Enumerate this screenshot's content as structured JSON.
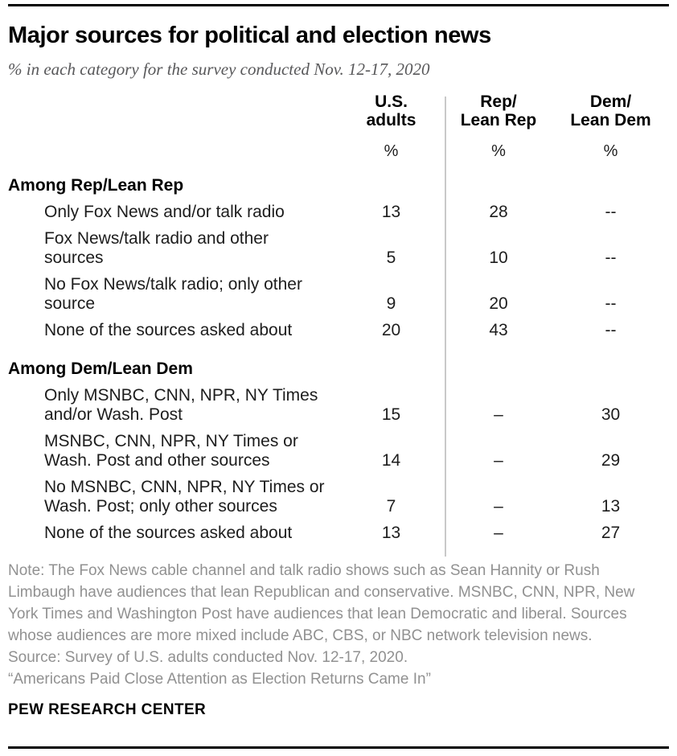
{
  "header": {
    "title": "Major sources for political and election news",
    "subtitle": "% in each category for the survey conducted Nov. 12-17, 2020"
  },
  "table": {
    "columns": [
      {
        "label": "U.S.\nadults",
        "unit": "%"
      },
      {
        "label": "Rep/\nLean Rep",
        "unit": "%"
      },
      {
        "label": "Dem/\nLean Dem",
        "unit": "%"
      }
    ],
    "sections": [
      {
        "heading": "Among Rep/Lean Rep",
        "rows": [
          {
            "label": "Only Fox News and/or talk radio",
            "values": [
              "13",
              "28",
              "--"
            ]
          },
          {
            "label": "Fox News/talk radio and other\nsources",
            "values": [
              "5",
              "10",
              "--"
            ]
          },
          {
            "label": "No Fox News/talk radio; only other\nsource",
            "values": [
              "9",
              "20",
              "--"
            ]
          },
          {
            "label": "None of the sources asked about",
            "values": [
              "20",
              "43",
              "--"
            ]
          }
        ]
      },
      {
        "heading": "Among Dem/Lean Dem",
        "rows": [
          {
            "label": "Only MSNBC, CNN, NPR, NY Times\nand/or Wash. Post",
            "values": [
              "15",
              "–",
              "30"
            ]
          },
          {
            "label": "MSNBC, CNN, NPR, NY Times or\nWash. Post and other sources",
            "values": [
              "14",
              "–",
              "29"
            ]
          },
          {
            "label": "No MSNBC, CNN, NPR, NY Times or\nWash. Post; only other sources",
            "values": [
              "7",
              "–",
              "13"
            ]
          },
          {
            "label": "None of the sources asked about",
            "values": [
              "13",
              "–",
              "27"
            ]
          }
        ]
      }
    ]
  },
  "footer": {
    "note": "Note: The Fox News cable channel and talk radio shows such as Sean Hannity or Rush Limbaugh have audiences that lean Republican and conservative. MSNBC, CNN, NPR, New York Times and Washington Post have audiences that lean Democratic and liberal. Sources whose audiences are more mixed include ABC, CBS, or NBC network television news.",
    "source": "Source: Survey of U.S. adults conducted Nov. 12-17, 2020.",
    "report": "“Americans Paid Close Attention as Election Returns Came In”",
    "brand": "PEW RESEARCH CENTER"
  },
  "chart_data": {
    "type": "table",
    "title": "Major sources for political and election news",
    "subtitle": "% in each category for the survey conducted Nov. 12-17, 2020",
    "columns": [
      "U.S. adults",
      "Rep/Lean Rep",
      "Dem/Lean Dem"
    ],
    "units": "%",
    "sections": [
      {
        "heading": "Among Rep/Lean Rep",
        "rows": [
          {
            "category": "Only Fox News and/or talk radio",
            "us_adults": 13,
            "rep_lean_rep": 28,
            "dem_lean_dem": null
          },
          {
            "category": "Fox News/talk radio and other sources",
            "us_adults": 5,
            "rep_lean_rep": 10,
            "dem_lean_dem": null
          },
          {
            "category": "No Fox News/talk radio; only other source",
            "us_adults": 9,
            "rep_lean_rep": 20,
            "dem_lean_dem": null
          },
          {
            "category": "None of the sources asked about",
            "us_adults": 20,
            "rep_lean_rep": 43,
            "dem_lean_dem": null
          }
        ]
      },
      {
        "heading": "Among Dem/Lean Dem",
        "rows": [
          {
            "category": "Only MSNBC, CNN, NPR, NY Times and/or Wash. Post",
            "us_adults": 15,
            "rep_lean_rep": null,
            "dem_lean_dem": 30
          },
          {
            "category": "MSNBC, CNN, NPR, NY Times or Wash. Post and other sources",
            "us_adults": 14,
            "rep_lean_rep": null,
            "dem_lean_dem": 29
          },
          {
            "category": "No MSNBC, CNN, NPR, NY Times or Wash. Post; only other sources",
            "us_adults": 7,
            "rep_lean_rep": null,
            "dem_lean_dem": 13
          },
          {
            "category": "None of the sources asked about",
            "us_adults": 13,
            "rep_lean_rep": null,
            "dem_lean_dem": 27
          }
        ]
      }
    ],
    "colors": {
      "text": "#1d1d1d",
      "subtitle_gray": "#58585a",
      "note_gray": "#919191",
      "divider_gray": "#c9c9c9",
      "rule_black": "#000000"
    }
  }
}
